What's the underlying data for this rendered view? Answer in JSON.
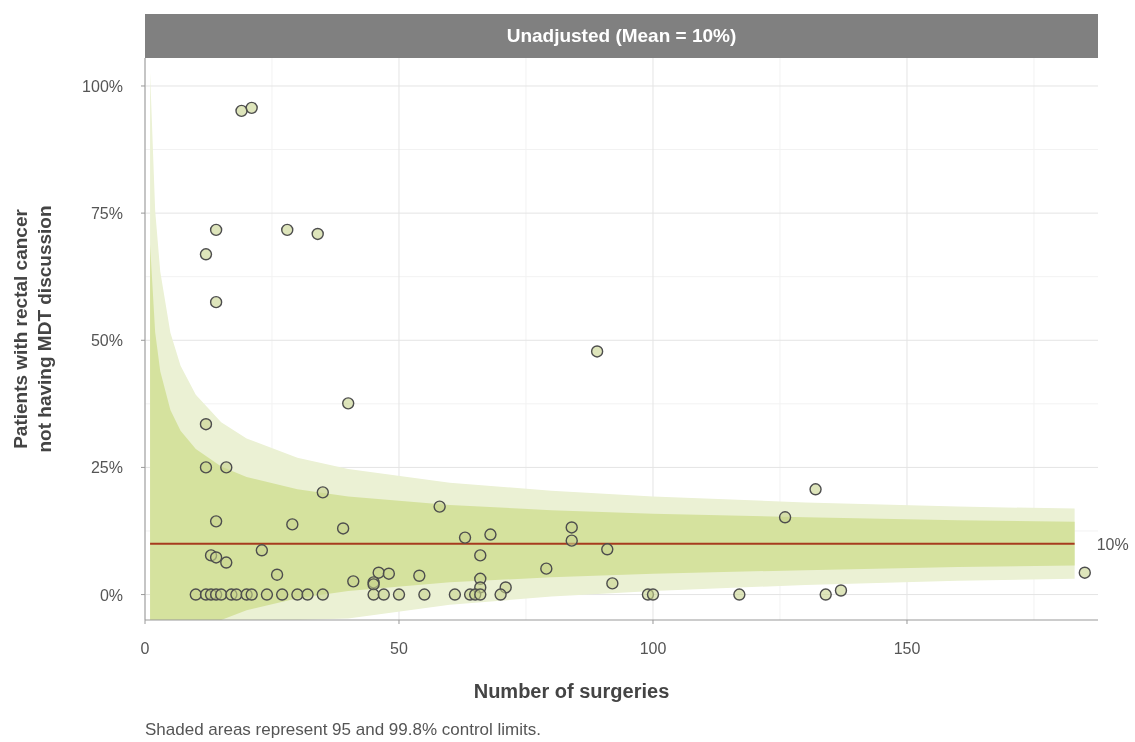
{
  "chart_data": {
    "type": "scatter",
    "title": "Unadjusted (Mean = 10%)",
    "xlabel": "Number of surgeries",
    "ylabel": "Patients with rectal cancer\nnot having MDT discussion",
    "xlim": [
      0,
      187.6
    ],
    "xticks": [
      0,
      50,
      100,
      150
    ],
    "ylim": [
      -5,
      105.5
    ],
    "yticks": [
      {
        "value": 0,
        "label": "0%"
      },
      {
        "value": 25,
        "label": "25%"
      },
      {
        "value": 50,
        "label": "50%"
      },
      {
        "value": 75,
        "label": "75%"
      },
      {
        "value": 100,
        "label": "100%"
      }
    ],
    "grid": true,
    "annotations": [
      "Shaded areas represent 95 and 99.8% control limits.",
      {
        "text": "10%",
        "x": 183,
        "y": 10
      }
    ],
    "series": [
      {
        "type": "line",
        "color": "#ebf1d4",
        "x": [
          1,
          2,
          3,
          5,
          7,
          10,
          15,
          20,
          30,
          40,
          60,
          80,
          100,
          130,
          160,
          183
        ],
        "values": [
          null,
          null,
          null,
          null,
          null,
          null,
          null,
          null,
          null,
          null,
          null,
          null,
          null,
          null,
          null,
          null
        ],
        "lower": [
          -5,
          -5,
          -5,
          -5,
          -5,
          -5,
          -5,
          -5,
          -5,
          -4.7,
          -2.0,
          -0.4,
          0.7,
          1.9,
          2.7,
          3.1
        ],
        "upper": [
          102.7,
          75.5,
          63.5,
          51.5,
          45.0,
          39.3,
          33.9,
          30.7,
          26.9,
          24.7,
          22.0,
          20.4,
          19.3,
          18.1,
          17.3,
          16.9
        ]
      },
      {
        "type": "line",
        "color": "#a63b1e",
        "x": [
          1,
          2,
          3,
          5,
          7,
          10,
          15,
          20,
          30,
          40,
          60,
          80,
          100,
          130,
          160,
          183
        ],
        "values": [
          10,
          10,
          10,
          10,
          10,
          10,
          10,
          10,
          10,
          10,
          10,
          10,
          10,
          10,
          10,
          10
        ],
        "lower": [
          -5,
          -5,
          -5,
          -5,
          -5,
          -5,
          -5,
          -3.1,
          -0.7,
          0.7,
          2.4,
          3.4,
          4.1,
          4.8,
          5.4,
          5.7
        ],
        "upper": [
          68.8,
          51.6,
          43.9,
          36.3,
          32.2,
          28.6,
          25.2,
          23.1,
          20.7,
          19.3,
          17.6,
          16.6,
          15.9,
          15.2,
          14.6,
          14.3
        ]
      },
      {
        "marker": "circle",
        "color": "#4d4d4d",
        "x": [
          19,
          21,
          14,
          28,
          34,
          12,
          14,
          89,
          40,
          12,
          12,
          16,
          35,
          132,
          126,
          58,
          14,
          29,
          39,
          84,
          63,
          68,
          84,
          91,
          23,
          13,
          14,
          66,
          16,
          79,
          26,
          46,
          48,
          54,
          185,
          41,
          45,
          45,
          66,
          92,
          71,
          66,
          137,
          10,
          12,
          13,
          14,
          15,
          17,
          18,
          20,
          21,
          24,
          27,
          30,
          32,
          35,
          45,
          47,
          50,
          55,
          61,
          64,
          65,
          66,
          70,
          99,
          100,
          117,
          134
        ],
        "values": [
          95.1,
          95.7,
          71.7,
          71.7,
          70.9,
          66.9,
          57.5,
          47.8,
          37.6,
          33.5,
          25,
          25,
          20.1,
          20.7,
          15.2,
          17.3,
          14.4,
          13.8,
          13,
          13.2,
          11.2,
          11.8,
          10.6,
          8.9,
          8.7,
          7.7,
          7.3,
          7.7,
          6.3,
          5.1,
          3.9,
          4.3,
          4.1,
          3.7,
          4.3,
          2.6,
          2.4,
          2,
          3.1,
          2.2,
          1.4,
          1.4,
          0.8,
          0,
          0,
          0,
          0,
          0,
          0,
          0,
          0,
          0,
          0,
          0,
          0,
          0,
          0,
          0,
          0,
          0,
          0,
          0,
          0,
          0,
          0,
          0,
          0,
          0,
          0,
          0
        ]
      }
    ]
  }
}
